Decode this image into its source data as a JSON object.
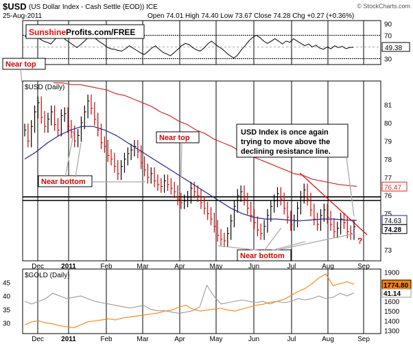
{
  "header": {
    "symbol": "$USD",
    "description": "(US Dollar Index - Cash Settle (EOD)) ICE",
    "watermark": "© StockCharts.com",
    "date": "25-Aug-2011",
    "ohlc": "Open 74.01  High 74.40  Low 73.67  Close 74.28  Chg +0.27 (+0.36%)"
  },
  "brand": {
    "part1": "Sunshine",
    "part2": "Profits.com/FREE",
    "color1": "#ff0000",
    "color2": "#000000"
  },
  "colors": {
    "price_up": "#000000",
    "price_down": "#cc0000",
    "ma_long": "#dd2222",
    "ma_short": "#22228a",
    "annotation": "#dd0000",
    "gold": "#ff8000",
    "usd_overlay": "#999999"
  },
  "annotations": {
    "near_top_1": "Near top",
    "near_top_2": "Near top",
    "near_bottom_1": "Near bottom",
    "near_bottom_2": "Near bottom",
    "callout": [
      "USD Index is once again",
      "trying to move above the",
      "declining resistance line."
    ],
    "question": "?"
  },
  "chart_data": [
    {
      "type": "line",
      "panel": "momentum indicator",
      "yticks": [
        30,
        50,
        70,
        90
      ],
      "ylim": [
        20,
        95
      ],
      "last_value_label": "49.38",
      "reference_lines": [
        30,
        70
      ],
      "values": [
        67,
        72,
        75,
        70,
        64,
        60,
        58,
        55,
        62,
        70,
        68,
        62,
        58,
        53,
        49,
        54,
        60,
        66,
        70,
        64,
        59,
        55,
        50,
        47,
        46,
        44,
        43,
        47,
        52,
        48,
        44,
        40,
        37,
        42,
        48,
        52,
        46,
        41,
        38,
        35,
        40,
        46,
        52,
        56,
        54,
        49,
        45,
        43,
        48,
        55,
        60,
        55,
        50,
        46,
        40,
        35,
        31,
        36,
        45,
        52,
        60,
        66,
        70,
        66,
        60,
        56,
        60,
        64,
        60,
        55,
        60,
        58,
        64,
        60,
        56,
        52,
        55,
        50,
        53,
        48,
        46,
        50,
        47,
        52,
        49,
        51,
        47,
        49,
        49.4
      ]
    },
    {
      "type": "line",
      "title": "$USD (Daily)",
      "panel": "main price",
      "yticks": [
        73,
        74,
        75,
        76,
        77,
        78,
        79,
        80,
        81
      ],
      "ylim": [
        72.4,
        82.3
      ],
      "x_tick_labels": [
        "Dec",
        "2011",
        "Feb",
        "Mar",
        "Apr",
        "May",
        "Jun",
        "Jul",
        "Aug",
        "Sep"
      ],
      "price_labels": [
        "76.47",
        "74.63",
        "74.28"
      ],
      "resistance_lines": [
        75.72,
        75.92
      ],
      "price_close": [
        79.6,
        79.0,
        79.8,
        80.6,
        81.1,
        80.3,
        79.8,
        80.2,
        80.6,
        79.9,
        79.6,
        80.4,
        80.5,
        79.8,
        79.5,
        79.0,
        79.3,
        80.0,
        80.6,
        81.2,
        80.8,
        80.2,
        79.6,
        78.9,
        78.7,
        78.2,
        78.0,
        77.6,
        77.2,
        77.6,
        78.0,
        78.3,
        78.5,
        78.7,
        78.4,
        77.8,
        77.4,
        77.0,
        77.2,
        76.8,
        76.6,
        76.5,
        76.8,
        76.6,
        76.4,
        76.2,
        75.8,
        75.6,
        75.7,
        75.9,
        76.4,
        76.2,
        76.0,
        75.6,
        75.3,
        75.0,
        74.7,
        74.3,
        73.8,
        73.6,
        73.5,
        73.9,
        74.6,
        75.4,
        76.0,
        76.2,
        75.8,
        75.3,
        74.9,
        74.5,
        74.1,
        73.9,
        74.3,
        74.9,
        75.4,
        75.7,
        76.1,
        75.8,
        75.3,
        74.8,
        74.4,
        74.6,
        75.3,
        75.9,
        76.3,
        75.8,
        75.2,
        74.7,
        74.4,
        74.9,
        75.2,
        74.8,
        74.4,
        74.0,
        74.2,
        74.7,
        74.5,
        74.0,
        73.9,
        74.28
      ],
      "ma_long": [
        82.2,
        82.2,
        82.1,
        82.1,
        82.0,
        81.9,
        81.8,
        81.6,
        81.5,
        81.3,
        81.1,
        80.9,
        80.6,
        80.4,
        80.1,
        79.9,
        79.6,
        79.4,
        79.1,
        78.9,
        78.7,
        78.4,
        78.2,
        78.0,
        77.8,
        77.6,
        77.4,
        77.2,
        77.1,
        76.9,
        76.8,
        76.7,
        76.6,
        76.55,
        76.5
      ],
      "ma_short": [
        78.0,
        78.4,
        78.9,
        79.3,
        79.6,
        79.8,
        79.8,
        79.6,
        79.3,
        78.9,
        78.5,
        78.1,
        77.7,
        77.3,
        76.9,
        76.5,
        76.1,
        75.7,
        75.3,
        75.0,
        74.8,
        74.7,
        74.7,
        74.65,
        74.6,
        74.65,
        74.7,
        74.7,
        74.65,
        74.63
      ]
    },
    {
      "type": "line",
      "title": "$GOLD (Daily)",
      "panel": "gold comparison",
      "yticks_left": [
        30,
        35,
        40,
        45
      ],
      "ylim_left": [
        26,
        50
      ],
      "yticks_right": [
        1300,
        1400,
        1500,
        1600,
        1700,
        1800,
        1900
      ],
      "ylim_right": [
        1270,
        1930
      ],
      "series": [
        {
          "name": "$GOLD",
          "values": [
            1360,
            1390,
            1400,
            1380,
            1370,
            1350,
            1340,
            1330,
            1360,
            1390,
            1400,
            1410,
            1420,
            1410,
            1430,
            1440,
            1450,
            1460,
            1470,
            1480,
            1500,
            1510,
            1540,
            1560,
            1520,
            1500,
            1510,
            1520,
            1530,
            1510,
            1500,
            1520,
            1540,
            1560,
            1570,
            1590,
            1600,
            1620,
            1660,
            1700,
            1730,
            1780,
            1840,
            1880,
            1760,
            1780,
            1800,
            1774.8
          ],
          "last_label": "1774.80"
        },
        {
          "name": "$USD",
          "values": [
            38,
            37,
            38,
            39,
            41,
            40,
            39,
            39.5,
            40,
            39,
            38,
            37.5,
            37,
            36.5,
            36,
            35.5,
            36,
            36.5,
            35,
            34.5,
            34.5,
            34,
            33.5,
            34,
            34.5,
            36,
            44,
            40,
            37,
            37.5,
            38,
            38.5,
            38,
            37.5,
            38,
            37,
            38,
            37.5,
            38,
            39,
            38.5,
            39,
            40,
            39,
            39.5,
            41,
            40,
            41.14
          ],
          "last_label": "41.14"
        }
      ]
    }
  ]
}
